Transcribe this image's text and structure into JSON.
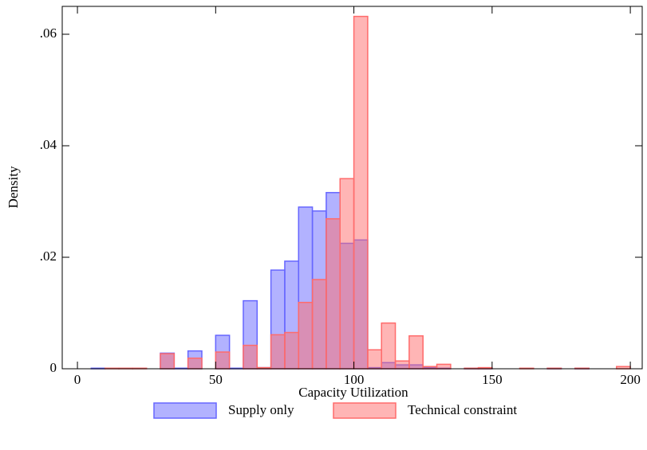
{
  "chart_data": {
    "type": "histogram",
    "xlabel": "Capacity Utilization",
    "ylabel": "Density",
    "bins": [
      0,
      5,
      10,
      15,
      20,
      25,
      30,
      35,
      40,
      45,
      50,
      55,
      60,
      65,
      70,
      75,
      80,
      85,
      90,
      95,
      100,
      105,
      110,
      115,
      120,
      125,
      130,
      135,
      140,
      145,
      150,
      155,
      160,
      165,
      170,
      175,
      180,
      185,
      190,
      195,
      200
    ],
    "series": [
      {
        "name": "Supply only",
        "color": "#6666ff",
        "values": [
          0,
          0.0001,
          0,
          0,
          0,
          0,
          0.0028,
          0.0001,
          0.0032,
          0,
          0.006,
          0.0001,
          0.0122,
          0.0002,
          0.0177,
          0.0193,
          0.029,
          0.0283,
          0.0316,
          0.0225,
          0.0231,
          0.0002,
          0.0011,
          0.0007,
          0.0007,
          0.0002,
          0.0001,
          0,
          0.0001,
          0.0001,
          0,
          0,
          0,
          0,
          0.0001,
          0,
          0.0001,
          0,
          0,
          0
        ]
      },
      {
        "name": "Technical constraint",
        "color": "#ff6b6b",
        "values": [
          0,
          0,
          0.0001,
          0.0001,
          0.0001,
          0,
          0.0027,
          0,
          0.0019,
          0,
          0.003,
          0,
          0.0042,
          0.0002,
          0.0061,
          0.0065,
          0.0119,
          0.016,
          0.0269,
          0.0341,
          0.0632,
          0.0034,
          0.0082,
          0.0014,
          0.0059,
          0.0004,
          0.0008,
          0,
          0.0001,
          0.0002,
          0,
          0,
          0.0001,
          0,
          0.0001,
          0,
          0.0001,
          0,
          0,
          0.0004
        ]
      }
    ],
    "xlim": [
      -5.5,
      204.3
    ],
    "xticks": [
      0,
      50,
      100,
      150,
      200
    ],
    "ylim": [
      0,
      0.065
    ],
    "yticks": [
      0,
      {
        "value": 0.02,
        "label": ".02"
      },
      {
        "value": 0.04,
        "label": ".04"
      },
      {
        "value": 0.06,
        "label": ".06"
      }
    ],
    "legend": "bottom"
  }
}
